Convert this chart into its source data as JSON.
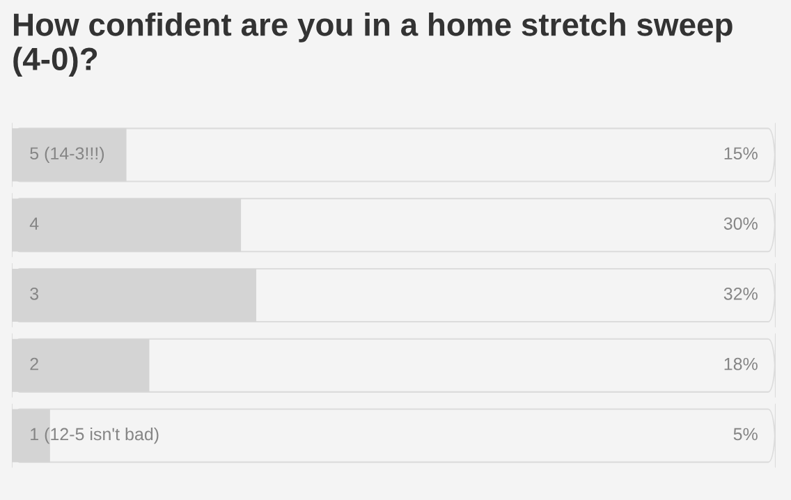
{
  "chart_data": {
    "type": "bar",
    "orientation": "horizontal",
    "title": "How confident are you in a home stretch sweep (4-0)?",
    "categories": [
      "5 (14-3!!!)",
      "4",
      "3",
      "2",
      "1 (12-5 isn't bad)"
    ],
    "values": [
      15,
      30,
      32,
      18,
      5
    ],
    "value_labels": [
      "15%",
      "30%",
      "32%",
      "18%",
      "5%"
    ],
    "color": "#d4d4d4"
  }
}
